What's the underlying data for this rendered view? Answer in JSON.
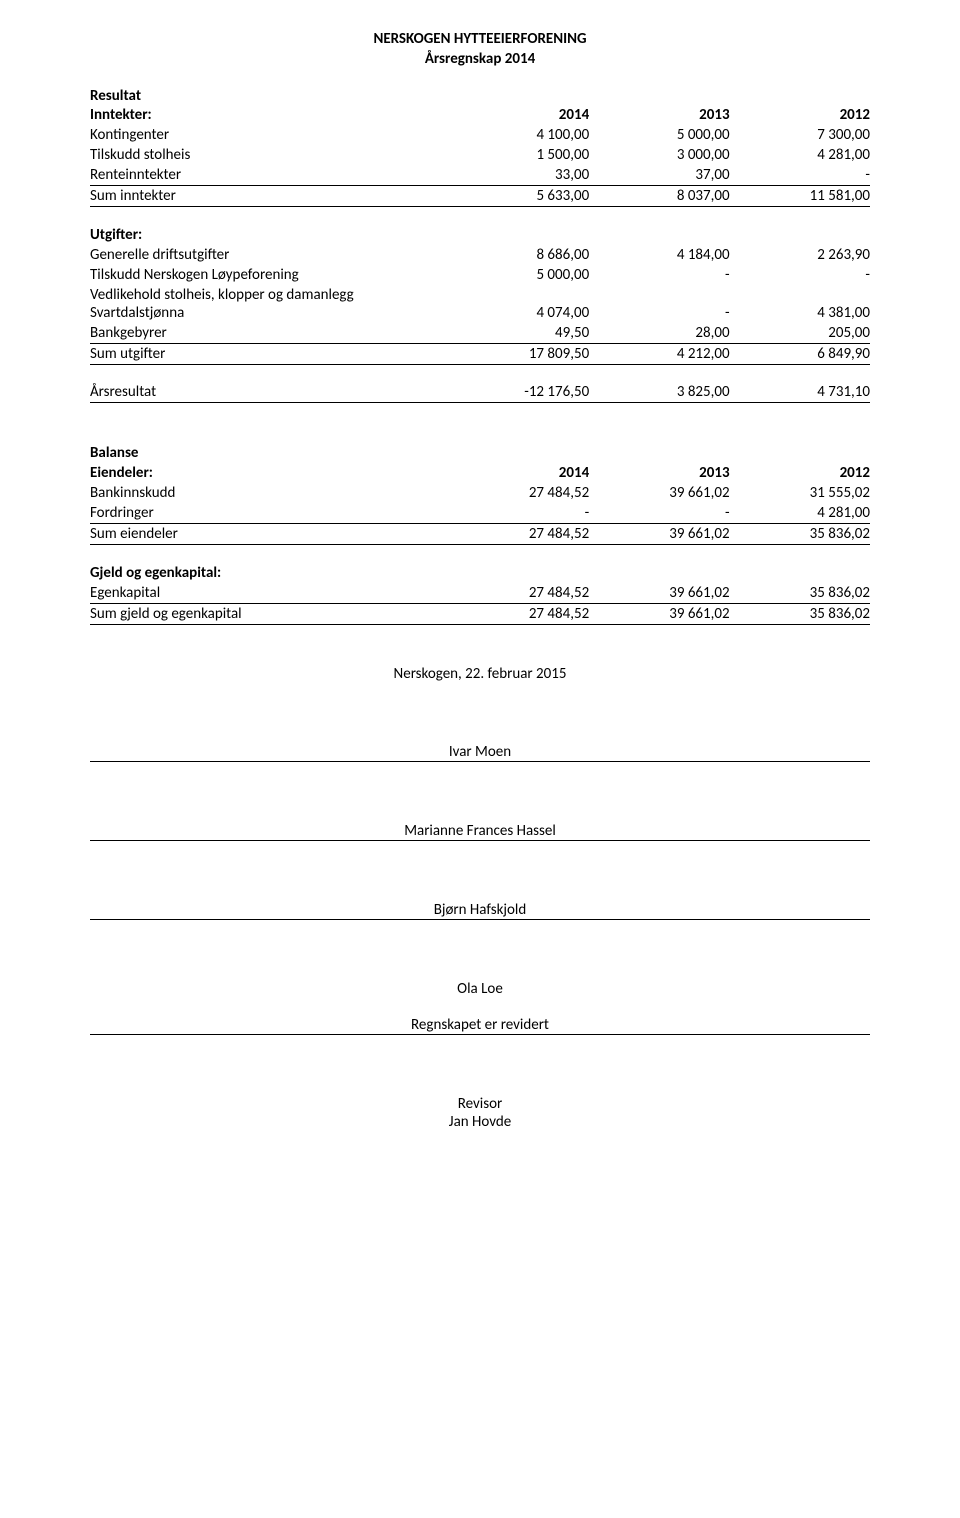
{
  "title": {
    "line1": "NERSKOGEN HYTTEEIERFORENING",
    "line2": "Årsregnskap 2014"
  },
  "resultat": {
    "label": "Resultat",
    "inntekter": {
      "label": "Inntekter:",
      "years": [
        "2014",
        "2013",
        "2012"
      ],
      "rows": [
        {
          "label": "Kontingenter",
          "v": [
            "4 100,00",
            "5 000,00",
            "7 300,00"
          ]
        },
        {
          "label": "Tilskudd stolheis",
          "v": [
            "1 500,00",
            "3 000,00",
            "4 281,00"
          ]
        },
        {
          "label": "Renteinntekter",
          "v": [
            "33,00",
            "37,00",
            "-"
          ]
        }
      ],
      "sum": {
        "label": "Sum inntekter",
        "v": [
          "5 633,00",
          "8 037,00",
          "11 581,00"
        ]
      }
    },
    "utgifter": {
      "label": "Utgifter:",
      "rows": [
        {
          "label": "Generelle driftsutgifter",
          "v": [
            "8 686,00",
            "4 184,00",
            "2 263,90"
          ]
        },
        {
          "label": "Tilskudd Nerskogen Løypeforening",
          "v": [
            "5 000,00",
            "-",
            "-"
          ]
        },
        {
          "label": "Vedlikehold stolheis, klopper og damanlegg Svartdalstjønna",
          "v": [
            "4 074,00",
            "-",
            "4 381,00"
          ]
        },
        {
          "label": "Bankgebyrer",
          "v": [
            "49,50",
            "28,00",
            "205,00"
          ]
        }
      ],
      "sum": {
        "label": "Sum utgifter",
        "v": [
          "17 809,50",
          "4 212,00",
          "6 849,90"
        ]
      }
    },
    "aarsresultat": {
      "label": "Årsresultat",
      "v": [
        "-12 176,50",
        "3 825,00",
        "4 731,10"
      ]
    }
  },
  "balanse": {
    "label": "Balanse",
    "eiendeler": {
      "label": "Eiendeler:",
      "years": [
        "2014",
        "2013",
        "2012"
      ],
      "rows": [
        {
          "label": "Bankinnskudd",
          "v": [
            "27 484,52",
            "39 661,02",
            "31 555,02"
          ]
        },
        {
          "label": "Fordringer",
          "v": [
            "-",
            "-",
            "4 281,00"
          ]
        }
      ],
      "sum": {
        "label": "Sum eiendeler",
        "v": [
          "27 484,52",
          "39 661,02",
          "35 836,02"
        ]
      }
    },
    "gjeld": {
      "label": "Gjeld og egenkapital:",
      "rows": [
        {
          "label": "Egenkapital",
          "v": [
            "27 484,52",
            "39 661,02",
            "35 836,02"
          ]
        }
      ],
      "sum": {
        "label": "Sum gjeld og egenkapital",
        "v": [
          "27 484,52",
          "39 661,02",
          "35 836,02"
        ]
      }
    }
  },
  "footer": {
    "place_date": "Nerskogen, 22. februar 2015",
    "sig1": "Ivar Moen",
    "sig2": "Marianne Frances Hassel",
    "sig3": "Bjørn Hafskjold",
    "sig4": "Ola Loe",
    "revidert": "Regnskapet er revidert",
    "revisor_label": "Revisor",
    "revisor_name": "Jan Hovde"
  }
}
